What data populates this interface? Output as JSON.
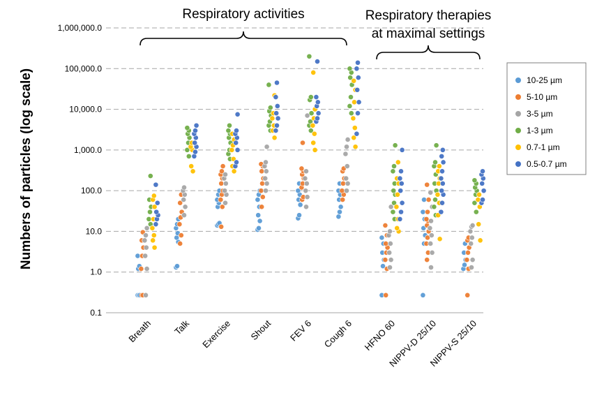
{
  "chart_data": {
    "type": "scatter",
    "y_scale": "log",
    "ylabel": "Numbers of particles (log scale)",
    "ylim": [
      0.1,
      1000000
    ],
    "yticks": [
      "0.1",
      "1.0",
      "10.0",
      "100.0",
      "1,000.0",
      "10,000.0",
      "100,000.0",
      "1,000,000.0"
    ],
    "grid": "horizontal dashed",
    "legend_position": "right",
    "categories": [
      "Breath",
      "Talk",
      "Exercise",
      "Shout",
      "FEV 6",
      "Cough 6",
      "HFNO 60",
      "NIPPV-D 25/10",
      "NIPPV-S 25/10"
    ],
    "group_annotations": [
      {
        "label": "Respiratory activities",
        "categories": [
          "Breath",
          "Talk",
          "Exercise",
          "Shout",
          "FEV 6",
          "Cough 6"
        ]
      },
      {
        "label_lines": [
          "Respiratory therapies",
          "at maximal settings"
        ],
        "categories": [
          "HFNO 60",
          "NIPPV-D 25/10",
          "NIPPV-S 25/10"
        ]
      }
    ],
    "series": [
      {
        "name": "10-25 µm",
        "color": "#5B9BD5",
        "values": [
          [
            0.27,
            0.27,
            0.27,
            1.2,
            1.4,
            2.5
          ],
          [
            1.3,
            1.4,
            5.5,
            7,
            9,
            12,
            15,
            20
          ],
          [
            14,
            15,
            16,
            40,
            50,
            60,
            80,
            100
          ],
          [
            11,
            12,
            18,
            25,
            40,
            60,
            80,
            100
          ],
          [
            21,
            25,
            45,
            60,
            80,
            100,
            150
          ],
          [
            23,
            30,
            40,
            60,
            80,
            100,
            150
          ],
          [
            0.27,
            1.4,
            2,
            3,
            5,
            7
          ],
          [
            0.27,
            5,
            8,
            12,
            20,
            30,
            60
          ],
          [
            1.2,
            1.5,
            2,
            3,
            5
          ]
        ]
      },
      {
        "name": "5-10 µm",
        "color": "#ED7D31",
        "values": [
          [
            0.27,
            0.27,
            1.2,
            2.5,
            4,
            6,
            9.5
          ],
          [
            5,
            8,
            15,
            22,
            30,
            50,
            80
          ],
          [
            13,
            40,
            60,
            80,
            100,
            150,
            200,
            250,
            300,
            400
          ],
          [
            40,
            70,
            100,
            150,
            200,
            300,
            400,
            450
          ],
          [
            60,
            70,
            120,
            150,
            200,
            250,
            300,
            350,
            1500
          ],
          [
            60,
            80,
            100,
            150,
            200,
            300,
            350
          ],
          [
            0.27,
            1.2,
            2,
            3,
            4,
            5,
            8,
            14
          ],
          [
            2,
            3,
            5,
            7,
            10,
            14,
            18,
            20,
            30,
            60,
            140
          ],
          [
            0.27,
            1.2,
            2,
            3,
            4,
            6,
            7
          ]
        ]
      },
      {
        "name": "3-5 µm",
        "color": "#A5A5A5",
        "values": [
          [
            0.27,
            1.2,
            2.5,
            4,
            6,
            8,
            12
          ],
          [
            25,
            40,
            60,
            80,
            100,
            120
          ],
          [
            50,
            80,
            100,
            150,
            200,
            250
          ],
          [
            100,
            150,
            200,
            300,
            400,
            500,
            1200
          ],
          [
            40,
            70,
            100,
            150,
            200,
            300,
            7000
          ],
          [
            100,
            150,
            200,
            400,
            800,
            1200,
            1800
          ],
          [
            1.3,
            2,
            3,
            5,
            8,
            10,
            40
          ],
          [
            1.3,
            3,
            5,
            8,
            12,
            18,
            40,
            90
          ],
          [
            1.3,
            2,
            5,
            7,
            10,
            13,
            14
          ]
        ]
      },
      {
        "name": "1-3 µm",
        "color": "#70AD47",
        "values": [
          [
            15,
            20,
            30,
            40,
            60,
            230
          ],
          [
            700,
            1000,
            1500,
            2000,
            2500,
            3000,
            3500
          ],
          [
            600,
            800,
            1000,
            1500,
            2000,
            2500,
            3000,
            4000
          ],
          [
            3000,
            4000,
            5000,
            7000,
            9000,
            11000,
            40000
          ],
          [
            3000,
            4000,
            5000,
            8000,
            17000,
            20000,
            200000
          ],
          [
            8000,
            12000,
            20000,
            40000,
            60000,
            80000,
            100000
          ],
          [
            20,
            30,
            50,
            80,
            100,
            150,
            300,
            400,
            1300
          ],
          [
            25,
            40,
            60,
            100,
            150,
            250,
            400,
            500,
            1300
          ],
          [
            30,
            50,
            80,
            100,
            120,
            150,
            180
          ]
        ]
      },
      {
        "name": "0.7-1 µm",
        "color": "#FFC000",
        "values": [
          [
            4,
            6,
            8,
            12,
            20,
            40,
            60,
            75
          ],
          [
            300,
            400,
            1000,
            1200,
            1500
          ],
          [
            300,
            400,
            600,
            1000,
            1300,
            1800,
            2500
          ],
          [
            2000,
            3000,
            4000,
            6000,
            8000,
            22000
          ],
          [
            1000,
            1500,
            2500,
            4000,
            6000,
            10000,
            80000
          ],
          [
            1200,
            2000,
            3500,
            6000,
            15000,
            30000,
            50000
          ],
          [
            10,
            12,
            20,
            40,
            80,
            150,
            200,
            500
          ],
          [
            6.5,
            25,
            50,
            80,
            150,
            200,
            300,
            400
          ],
          [
            6,
            15,
            40,
            60,
            80
          ]
        ]
      },
      {
        "name": "0.5-0.7 µm",
        "color": "#4472C4",
        "values": [
          [
            15,
            20,
            25,
            30,
            50,
            140
          ],
          [
            700,
            900,
            1200,
            1500,
            2000,
            2500,
            3000,
            4000
          ],
          [
            400,
            500,
            1000,
            1500,
            2000,
            2500,
            3000,
            7500
          ],
          [
            3000,
            4000,
            6000,
            8000,
            12000,
            20000,
            45000
          ],
          [
            5000,
            6000,
            8000,
            12000,
            15000,
            20000,
            150000
          ],
          [
            2500,
            8000,
            15000,
            30000,
            60000,
            100000,
            140000
          ],
          [
            20,
            30,
            50,
            100,
            150,
            200,
            300,
            1000
          ],
          [
            30,
            50,
            80,
            100,
            150,
            200,
            300,
            500,
            700,
            1000
          ],
          [
            50,
            60,
            100,
            150,
            200,
            250,
            300
          ]
        ]
      }
    ]
  }
}
